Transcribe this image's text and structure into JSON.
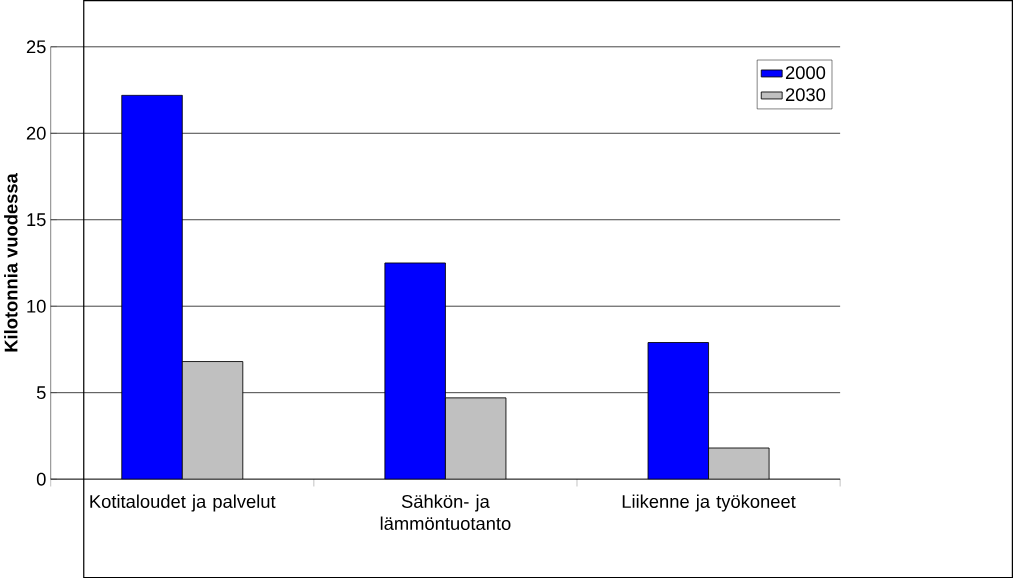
{
  "chart_data": {
    "type": "bar",
    "ylabel": "Kilotonnia vuodessa",
    "categories": [
      "Kotitaloudet ja palvelut",
      "Sähkön- ja lämmöntuotanto",
      "Liikenne ja työkoneet"
    ],
    "series": [
      {
        "name": "2000",
        "color": "#0000ff",
        "values": [
          22.2,
          12.5,
          7.9
        ]
      },
      {
        "name": "2030",
        "color": "#c0c0c0",
        "values": [
          6.8,
          4.7,
          1.8
        ]
      }
    ],
    "ylim": [
      0,
      25
    ],
    "yticks": [
      0,
      5,
      10,
      15,
      20,
      25
    ],
    "grid": "y",
    "legend": "top right"
  }
}
